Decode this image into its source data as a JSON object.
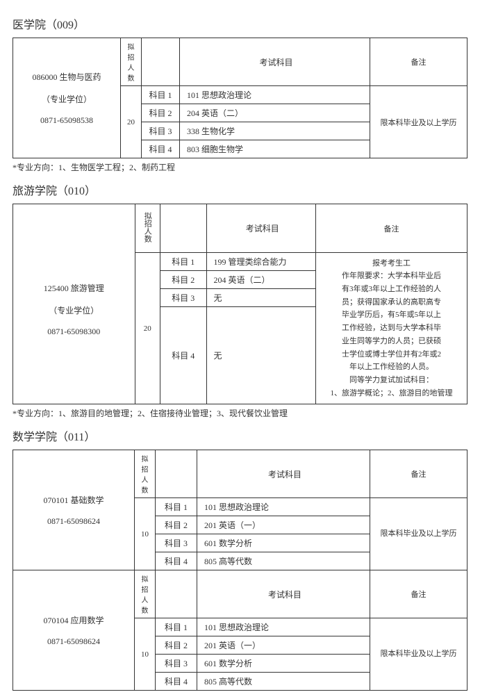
{
  "sections": [
    {
      "title": "医学院（009）",
      "table": {
        "major": {
          "code": "086000",
          "name": "生物与医药",
          "degree": "（专业学位）",
          "phone": "0871-65098538"
        },
        "quota_label": "拟招人数",
        "quota": "20",
        "header_exam": "考试科目",
        "header_remark": "备注",
        "subjects": [
          {
            "label": "科目 1",
            "name": "101 思想政治理论"
          },
          {
            "label": "科目 2",
            "name": "204 英语（二）"
          },
          {
            "label": "科目 3",
            "name": "338 生物化学"
          },
          {
            "label": "科目 4",
            "name": "803 细胞生物学"
          }
        ],
        "remark": "限本科毕业及以上学历"
      },
      "footnote": "*专业方向：1、生物医学工程；2、制药工程"
    },
    {
      "title": "旅游学院（010）",
      "table": {
        "major": {
          "code": "125400",
          "name": "旅游管理",
          "degree": "（专业学位）",
          "phone": "0871-65098300"
        },
        "quota_label": "拟招人数",
        "quota": "20",
        "header_exam": "考试科目",
        "header_remark": "备注",
        "subjects": [
          {
            "label": "科目 1",
            "name": "199 管理类综合能力"
          },
          {
            "label": "科目 2",
            "name": "204 英语（二）"
          },
          {
            "label": "科目 3",
            "name": "无"
          },
          {
            "label": "科目 4",
            "name": "无"
          }
        ],
        "remark_lines": [
          "报考考生工",
          "作年限要求：大学本科毕业后",
          "有3年或3年以上工作经验的人",
          "员；获得国家承认的高职高专",
          "毕业学历后，有5年或5年以上",
          "工作经验，达到与大学本科毕",
          "业生同等学力的人员；已获硕",
          "士学位或博士学位并有2年或2",
          "年以上工作经验的人员。",
          "同等学力复试加试科目：",
          "1、旅游学概论；2、旅游目的地管理"
        ]
      },
      "footnote": "*专业方向：1、旅游目的地管理；2、住宿接待业管理；3、现代餐饮业管理"
    },
    {
      "title": "数学学院（011）",
      "table_multi": [
        {
          "major": {
            "code": "070101",
            "name": "基础数学",
            "phone": "0871-65098624"
          },
          "quota_label": "拟招人数",
          "quota": "10",
          "header_exam": "考试科目",
          "header_remark": "备注",
          "subjects": [
            {
              "label": "科目 1",
              "name": "101 思想政治理论"
            },
            {
              "label": "科目 2",
              "name": "201 英语（一）"
            },
            {
              "label": "科目 3",
              "name": "601 数学分析"
            },
            {
              "label": "科目 4",
              "name": "805 高等代数"
            }
          ],
          "remark": "限本科毕业及以上学历"
        },
        {
          "major": {
            "code": "070104",
            "name": "应用数学",
            "phone": "0871-65098624"
          },
          "quota_label": "拟招人数",
          "quota": "10",
          "header_exam": "考试科目",
          "header_remark": "备注",
          "subjects": [
            {
              "label": "科目 1",
              "name": "101 思想政治理论"
            },
            {
              "label": "科目 2",
              "name": "201 英语（一）"
            },
            {
              "label": "科目 3",
              "name": "601 数学分析"
            },
            {
              "label": "科目 4",
              "name": "805 高等代数"
            }
          ],
          "remark": "限本科毕业及以上学历"
        }
      ]
    }
  ]
}
